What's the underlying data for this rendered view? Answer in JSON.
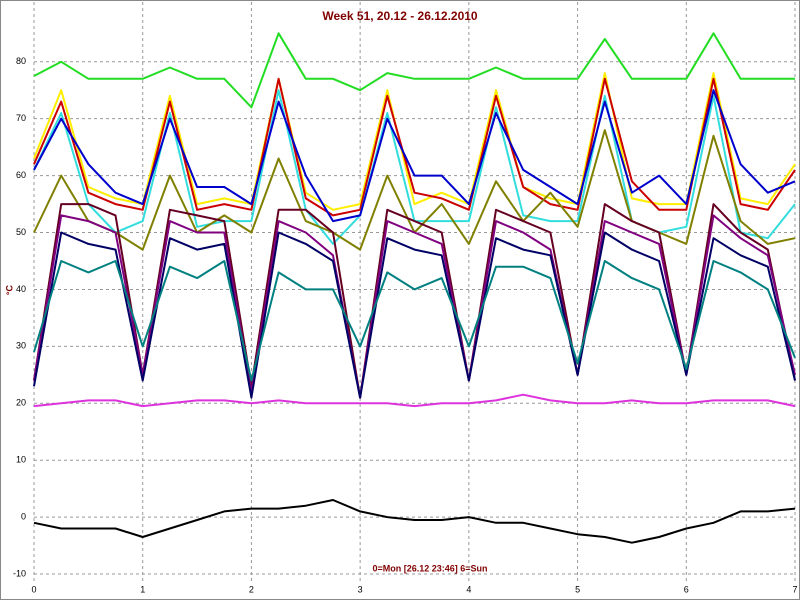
{
  "chart_data": {
    "type": "line",
    "title": "Week 51, 20.12 - 26.12.2010",
    "y_label": "°C",
    "annotation": "0=Mon [26.12 23:46] 6=Sun",
    "xlim": [
      0,
      7
    ],
    "xticks": [
      0,
      1,
      2,
      3,
      4,
      5,
      6,
      7
    ],
    "ylim": [
      -11.4,
      90.5
    ],
    "yticks": [
      -10,
      0,
      10,
      20,
      30,
      40,
      50,
      60,
      70,
      80
    ],
    "grid": true,
    "x": [
      0,
      0.25,
      0.5,
      0.75,
      1,
      1.25,
      1.5,
      1.75,
      2,
      2.25,
      2.5,
      2.75,
      3,
      3.25,
      3.5,
      3.75,
      4,
      4.25,
      4.5,
      4.75,
      5,
      5.25,
      5.5,
      5.75,
      6,
      6.25,
      6.5,
      6.75,
      7
    ],
    "series": [
      {
        "color": "#22dd22",
        "values": [
          77.5,
          80,
          77,
          77,
          77,
          79,
          77,
          77,
          72,
          85,
          77,
          77,
          75,
          78,
          77,
          77,
          77,
          79,
          77,
          77,
          77,
          84,
          77,
          77,
          77,
          85,
          77,
          77,
          77
        ]
      },
      {
        "color": "#ffee00",
        "values": [
          63,
          75,
          58,
          56,
          55,
          74,
          55,
          56,
          55,
          77,
          57,
          54,
          55,
          75,
          55,
          57,
          55,
          75,
          58,
          56,
          55,
          78,
          56,
          55,
          55,
          78,
          56,
          55,
          62
        ]
      },
      {
        "color": "#cc0000",
        "values": [
          62,
          73,
          57,
          55,
          54,
          73,
          54,
          55,
          54,
          77,
          56,
          53,
          54,
          74,
          57,
          56,
          54,
          74,
          58,
          55,
          54,
          77,
          59,
          54,
          54,
          77,
          55,
          54,
          61
        ]
      },
      {
        "color": "#33dddd",
        "values": [
          61,
          71,
          55,
          50,
          52,
          71,
          51,
          52,
          52,
          75,
          54,
          48,
          53,
          71,
          52,
          52,
          52,
          72,
          53,
          52,
          52,
          74,
          52,
          50,
          51,
          74,
          50,
          49,
          55
        ]
      },
      {
        "color": "#0000cc",
        "values": [
          61,
          70,
          62,
          57,
          55,
          70,
          58,
          58,
          55,
          73,
          60,
          52,
          53,
          70,
          60,
          60,
          55,
          71,
          61,
          58,
          55,
          73,
          57,
          60,
          55,
          75,
          62,
          57,
          59
        ]
      },
      {
        "color": "#808000",
        "values": [
          50,
          60,
          52,
          50,
          47,
          60,
          50,
          53,
          50,
          63,
          52,
          50,
          47,
          60,
          50,
          55,
          48,
          59,
          52,
          57,
          51,
          68,
          52,
          50,
          48,
          67,
          52,
          48,
          49
        ]
      },
      {
        "color": "#660022",
        "values": [
          24,
          55,
          55,
          53,
          25,
          54,
          53,
          52,
          23,
          54,
          54,
          50,
          21,
          54,
          52,
          50,
          24,
          54,
          52,
          50,
          25,
          55,
          52,
          50,
          25,
          55,
          50,
          47,
          24
        ]
      },
      {
        "color": "#800080",
        "values": [
          24,
          53,
          52,
          50,
          25,
          52,
          50,
          50,
          22,
          52,
          50,
          46,
          21,
          52,
          50,
          48,
          24,
          52,
          50,
          47,
          25,
          52,
          50,
          48,
          25,
          53,
          49,
          46,
          25
        ]
      },
      {
        "color": "#000066",
        "values": [
          23,
          50,
          48,
          47,
          24,
          49,
          47,
          48,
          21,
          50,
          48,
          45,
          21,
          49,
          47,
          46,
          24,
          49,
          47,
          46,
          25,
          50,
          47,
          45,
          25,
          49,
          46,
          44,
          24
        ]
      },
      {
        "color": "#008080",
        "values": [
          29,
          45,
          43,
          45,
          30,
          44,
          42,
          45,
          24,
          43,
          40,
          40,
          30,
          43,
          40,
          42,
          30,
          44,
          44,
          42,
          27,
          45,
          42,
          40,
          26,
          45,
          43,
          40,
          28
        ]
      },
      {
        "color": "#dd33dd",
        "values": [
          19.5,
          20,
          20.5,
          20.5,
          19.5,
          20,
          20.5,
          20.5,
          20,
          20.5,
          20,
          20,
          20,
          20,
          19.5,
          20,
          20,
          20.5,
          21.5,
          20.5,
          20,
          20,
          20.5,
          20,
          20,
          20.5,
          20.5,
          20.5,
          19.5
        ]
      },
      {
        "color": "#000000",
        "values": [
          -1,
          -2,
          -2,
          -2,
          -3.5,
          -2,
          -0.5,
          1,
          1.5,
          1.5,
          2,
          3,
          1,
          0,
          -0.5,
          -0.5,
          0,
          -1,
          -1,
          -2,
          -3,
          -3.5,
          -4.5,
          -3.5,
          -2,
          -1,
          1,
          1,
          1.5
        ]
      }
    ]
  }
}
